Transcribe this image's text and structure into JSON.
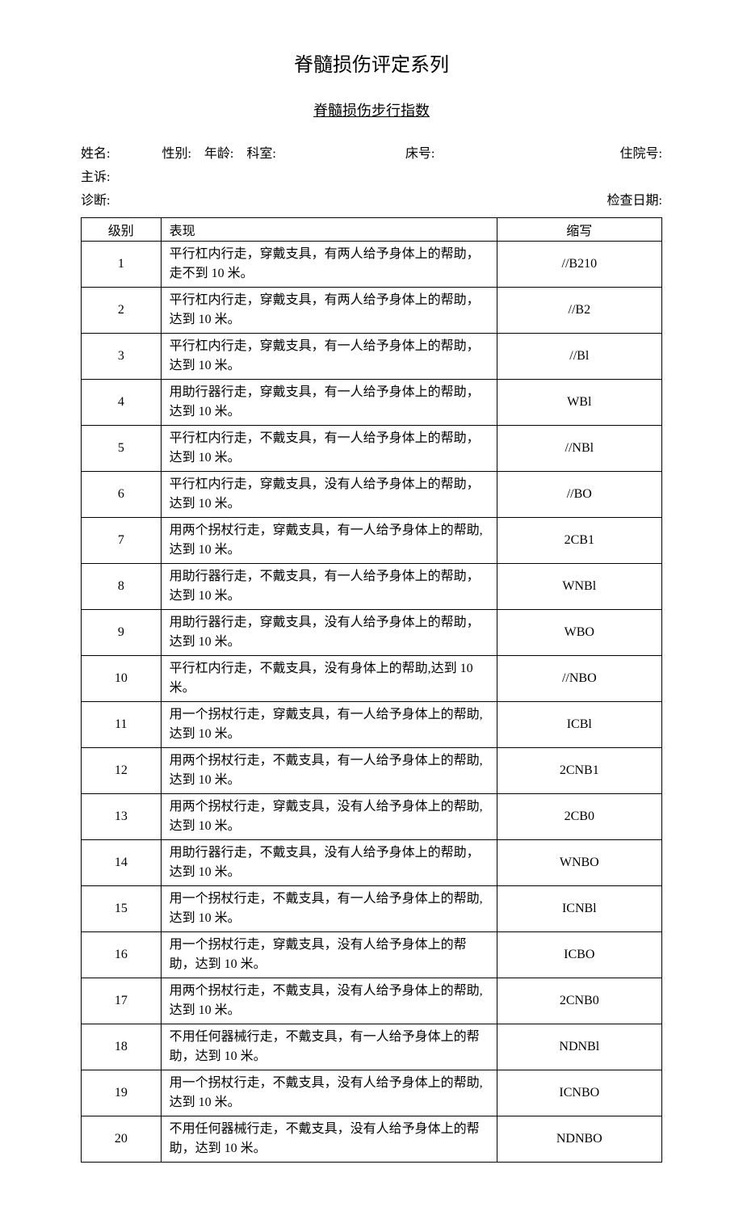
{
  "title": "脊髓损伤评定系列",
  "subtitle": "脊髓损伤步行指数",
  "info": {
    "name_label": "姓名:",
    "sex_label": "性别:",
    "age_label": "年龄:",
    "dept_label": "科室:",
    "bed_label": "床号:",
    "adm_label": "住院号:",
    "chief_label": "主诉:",
    "diag_label": "诊断:",
    "date_label": "检查日期:"
  },
  "columns": {
    "level": "级别",
    "desc": "表现",
    "abbr": "缩写"
  },
  "rows": [
    {
      "level": "1",
      "desc": "平行杠内行走，穿戴支具，有两人给予身体上的帮助，走不到 10 米。",
      "abbr": "//B210"
    },
    {
      "level": "2",
      "desc": "平行杠内行走，穿戴支具，有两人给予身体上的帮助，达到 10 米。",
      "abbr": "//B2"
    },
    {
      "level": "3",
      "desc": "平行杠内行走，穿戴支具，有一人给予身体上的帮助，达到 10 米。",
      "abbr": "//Bl"
    },
    {
      "level": "4",
      "desc": "用助行器行走，穿戴支具，有一人给予身体上的帮助，达到 10 米。",
      "abbr": "WBl"
    },
    {
      "level": "5",
      "desc": "平行杠内行走，不戴支具，有一人给予身体上的帮助，达到 10 米。",
      "abbr": "//NBl"
    },
    {
      "level": "6",
      "desc": "平行杠内行走，穿戴支具，没有人给予身体上的帮助，达到 10 米。",
      "abbr": "//BO"
    },
    {
      "level": "7",
      "desc": "用两个拐杖行走，穿戴支具，有一人给予身体上的帮助,达到 10 米。",
      "abbr": "2CB1"
    },
    {
      "level": "8",
      "desc": "用助行器行走，不戴支具，有一人给予身体上的帮助，达到 10 米。",
      "abbr": "WNBl"
    },
    {
      "level": "9",
      "desc": "用助行器行走，穿戴支具，没有人给予身体上的帮助，达到 10 米。",
      "abbr": "WBO"
    },
    {
      "level": "10",
      "desc": "平行杠内行走，不戴支具，没有身体上的帮助,达到 10 米。",
      "abbr": "//NBO"
    },
    {
      "level": "11",
      "desc": "用一个拐杖行走，穿戴支具，有一人给予身体上的帮助,达到 10 米。",
      "abbr": "ICBl"
    },
    {
      "level": "12",
      "desc": "用两个拐杖行走，不戴支具，有一人给予身体上的帮助,达到 10 米。",
      "abbr": "2CNB1"
    },
    {
      "level": "13",
      "desc": "用两个拐杖行走，穿戴支具，没有人给予身体上的帮助,达到 10 米。",
      "abbr": "2CB0"
    },
    {
      "level": "14",
      "desc": "用助行器行走，不戴支具，没有人给予身体上的帮助，达到 10 米。",
      "abbr": "WNBO"
    },
    {
      "level": "15",
      "desc": "用一个拐杖行走，不戴支具，有一人给予身体上的帮助,达到 10 米。",
      "abbr": "ICNBl"
    },
    {
      "level": "16",
      "desc": "用一个拐杖行走，穿戴支具，没有人给予身体上的帮助，达到 10 米。",
      "abbr": "ICBO"
    },
    {
      "level": "17",
      "desc": "用两个拐杖行走，不戴支具，没有人给予身体上的帮助,达到 10 米。",
      "abbr": "2CNB0"
    },
    {
      "level": "18",
      "desc": "不用任何器械行走，不戴支具，有一人给予身体上的帮助，达到 10 米。",
      "abbr": "NDNBl"
    },
    {
      "level": "19",
      "desc": "用一个拐杖行走，不戴支具，没有人给予身体上的帮助,达到 10 米。",
      "abbr": "ICNBO"
    },
    {
      "level": "20",
      "desc": "不用任何器械行走，不戴支具，没有人给予身体上的帮助，达到 10 米。",
      "abbr": "NDNBO"
    }
  ]
}
